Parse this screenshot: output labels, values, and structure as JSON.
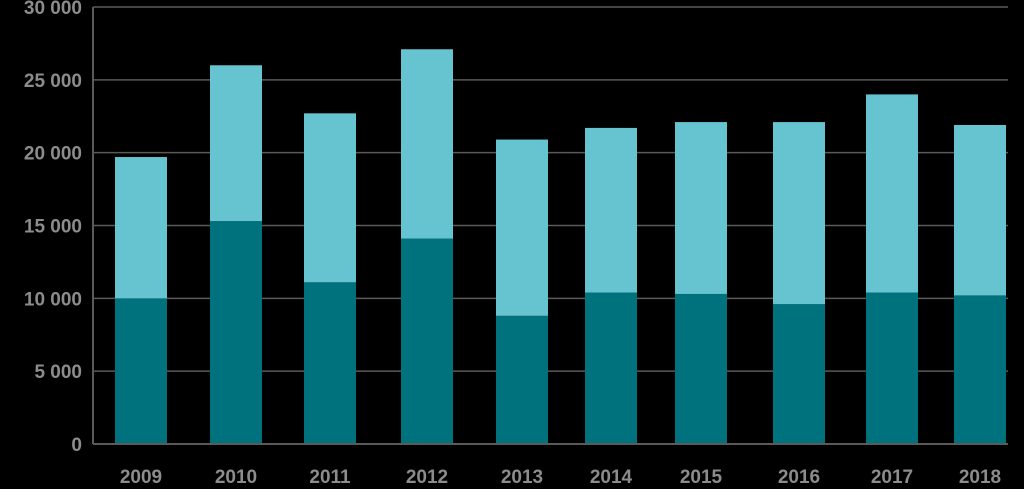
{
  "chart_data": {
    "type": "bar",
    "stacked": true,
    "categories": [
      "2009",
      "2010",
      "2011",
      "2012",
      "2013",
      "2014",
      "2015",
      "2016",
      "2017",
      "2018"
    ],
    "series": [
      {
        "values": [
          10000,
          15300,
          11100,
          14100,
          8800,
          10400,
          10300,
          9600,
          10400,
          10200
        ],
        "color": "#00727d"
      },
      {
        "values": [
          9700,
          10700,
          11600,
          13000,
          12100,
          11300,
          11800,
          12500,
          13600,
          11700
        ],
        "color": "#66c4d1"
      }
    ],
    "yticks": [
      "0",
      "5 000",
      "10 000",
      "15 000",
      "20 000",
      "25 000",
      "30 000"
    ],
    "ytick_values": [
      0,
      5000,
      10000,
      15000,
      20000,
      25000,
      30000
    ],
    "ylim": [
      0,
      30000
    ],
    "grid": true,
    "title": "",
    "xlabel": "",
    "ylabel": ""
  }
}
